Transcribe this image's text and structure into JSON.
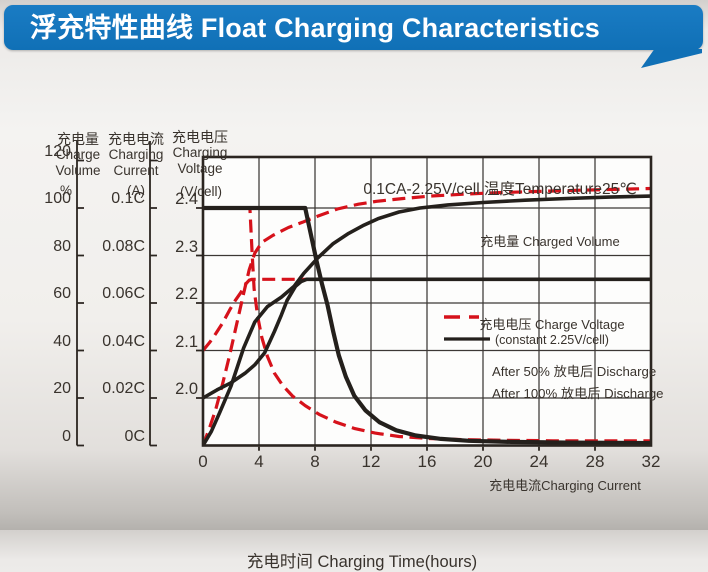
{
  "banner": {
    "title": "浮充特性曲线 Float Charging Characteristics"
  },
  "colors": {
    "banner_blue": "#1070b6",
    "curve_red": "#d6121b",
    "curve_black": "#24201c",
    "text": "#39332d"
  },
  "chart_data": {
    "type": "line",
    "condition_title": "0.1CA-2.25V/cell  温度Temperature25℃",
    "xlabel": "充电时间 Charging Time(hours)",
    "xlim": [
      0,
      32
    ],
    "x_ticks": [
      0,
      4,
      8,
      12,
      16,
      20,
      24,
      28,
      32
    ],
    "grid": "on",
    "axes": [
      {
        "name": "charge-volume",
        "label_zh": "充电量",
        "label_en1": "Charge",
        "label_en2": "Volume",
        "unit": "%",
        "ticks": [
          "120",
          "100",
          "80",
          "60",
          "40",
          "20",
          "0"
        ]
      },
      {
        "name": "charging-current",
        "label_zh": "充电电流",
        "label_en1": "Charging",
        "label_en2": "Current",
        "unit": "(A)",
        "ticks": [
          "",
          "0.1C",
          "0.08C",
          "0.06C",
          "0.04C",
          "0.02C",
          "0C"
        ]
      },
      {
        "name": "charging-voltage",
        "label_zh": "充电电压",
        "label_en1": "Charging",
        "label_en2": "Voltage",
        "unit": "(V/cell)",
        "ticks": [
          "",
          "2.4",
          "2.3",
          "2.2",
          "2.1",
          "2.0",
          ""
        ]
      }
    ],
    "annotations": {
      "charged_volume": "充电量 Charged Volume",
      "charge_voltage": "充电电压 Charge Voltage",
      "charge_voltage_sub": "(constant 2.25V/cell)",
      "charging_current": "充电电流Charging Current"
    },
    "legend": [
      {
        "label": "After 50%  放电后 Discharge",
        "style": "dashed",
        "color": "#d6121b"
      },
      {
        "label": "After 100%  放电后 Discharge",
        "style": "solid",
        "color": "#24201c"
      }
    ],
    "series": [
      {
        "name": "charging-current-after-50",
        "unit": "C",
        "style": "dashed",
        "color": "#d6121b",
        "width": 3.2,
        "points": [
          [
            0,
            0.1
          ],
          [
            3.35,
            0.1
          ],
          [
            3.5,
            0.082
          ],
          [
            3.65,
            0.066
          ],
          [
            3.9,
            0.0545
          ],
          [
            4.2,
            0.0455
          ],
          [
            4.6,
            0.0375
          ],
          [
            5.1,
            0.0305
          ],
          [
            5.7,
            0.0252
          ],
          [
            6.4,
            0.0208
          ],
          [
            7.3,
            0.0168
          ],
          [
            8.3,
            0.0131
          ],
          [
            9.5,
            0.0098
          ],
          [
            10.8,
            0.0072
          ],
          [
            12.3,
            0.0052
          ],
          [
            14,
            0.0038
          ],
          [
            16,
            0.003
          ],
          [
            18.5,
            0.0025
          ],
          [
            21.5,
            0.0022
          ],
          [
            25,
            0.002
          ],
          [
            32,
            0.002
          ]
        ]
      },
      {
        "name": "charge-voltage-after-50",
        "unit": "V",
        "style": "dashed",
        "color": "#d6121b",
        "width": 3.2,
        "points": [
          [
            0,
            2.1
          ],
          [
            0.5,
            2.118
          ],
          [
            0.9,
            2.135
          ],
          [
            1.4,
            2.158
          ],
          [
            1.9,
            2.185
          ],
          [
            2.3,
            2.205
          ],
          [
            2.7,
            2.222
          ],
          [
            3.05,
            2.24
          ],
          [
            3.3,
            2.248
          ],
          [
            3.5,
            2.25
          ],
          [
            32,
            2.25
          ]
        ]
      },
      {
        "name": "charged-volume-after-50",
        "unit": "%",
        "style": "dashed",
        "color": "#d6121b",
        "width": 3.2,
        "points": [
          [
            0,
            0
          ],
          [
            0.5,
            8
          ],
          [
            0.9,
            15
          ],
          [
            1.4,
            26
          ],
          [
            1.9,
            38
          ],
          [
            2.4,
            51
          ],
          [
            2.9,
            64
          ],
          [
            3.3,
            74
          ],
          [
            3.7,
            81
          ],
          [
            4.2,
            85.5
          ],
          [
            5,
            88.5
          ],
          [
            6.1,
            91.8
          ],
          [
            7.1,
            94
          ],
          [
            8.2,
            96.6
          ],
          [
            9.6,
            99.6
          ],
          [
            11.1,
            101.6
          ],
          [
            12.4,
            102.8
          ],
          [
            14.3,
            104
          ],
          [
            16.2,
            105
          ],
          [
            18.6,
            105.8
          ],
          [
            21.2,
            106.5
          ],
          [
            24,
            107
          ],
          [
            27,
            107.5
          ],
          [
            32,
            108.2
          ]
        ]
      },
      {
        "name": "charging-current-after-100",
        "unit": "C",
        "style": "solid",
        "color": "#24201c",
        "width": 4.2,
        "points": [
          [
            0,
            0.1
          ],
          [
            7.3,
            0.1
          ],
          [
            7.7,
            0.089
          ],
          [
            8.1,
            0.078
          ],
          [
            8.5,
            0.068
          ],
          [
            8.9,
            0.059
          ],
          [
            9.3,
            0.048
          ],
          [
            9.7,
            0.038
          ],
          [
            10.2,
            0.029
          ],
          [
            10.8,
            0.021
          ],
          [
            11.6,
            0.0148
          ],
          [
            12.6,
            0.0098
          ],
          [
            13.8,
            0.0064
          ],
          [
            15.2,
            0.0042
          ],
          [
            17,
            0.0028
          ],
          [
            19,
            0.002
          ],
          [
            22,
            0.0015
          ],
          [
            26,
            0.0012
          ],
          [
            32,
            0.001
          ]
        ]
      },
      {
        "name": "charge-voltage-after-100",
        "unit": "V",
        "style": "solid",
        "color": "#24201c",
        "width": 3.6,
        "points": [
          [
            0,
            2.0
          ],
          [
            1,
            2.017
          ],
          [
            2,
            2.032
          ],
          [
            3,
            2.052
          ],
          [
            3.7,
            2.07
          ],
          [
            4.4,
            2.095
          ],
          [
            5.1,
            2.14
          ],
          [
            5.6,
            2.175
          ],
          [
            6,
            2.205
          ],
          [
            6.6,
            2.235
          ],
          [
            7,
            2.245
          ],
          [
            7.4,
            2.25
          ],
          [
            32,
            2.25
          ]
        ]
      },
      {
        "name": "charged-volume-after-100",
        "unit": "%",
        "style": "solid",
        "color": "#24201c",
        "width": 3.6,
        "points": [
          [
            0,
            0
          ],
          [
            0.6,
            6
          ],
          [
            1.2,
            14
          ],
          [
            2,
            25
          ],
          [
            2.9,
            41
          ],
          [
            3.7,
            52
          ],
          [
            4.6,
            58.5
          ],
          [
            5.6,
            62.5
          ],
          [
            6.5,
            67
          ],
          [
            7.2,
            72.5
          ],
          [
            8.2,
            79
          ],
          [
            9.3,
            85
          ],
          [
            10.4,
            89.3
          ],
          [
            11.5,
            92.8
          ],
          [
            12.5,
            95.5
          ],
          [
            14,
            98.3
          ],
          [
            15.5,
            100
          ],
          [
            17.5,
            101.3
          ],
          [
            20,
            102.3
          ],
          [
            23,
            103.3
          ],
          [
            26,
            104
          ],
          [
            29,
            104.6
          ],
          [
            32,
            105
          ]
        ]
      }
    ]
  }
}
